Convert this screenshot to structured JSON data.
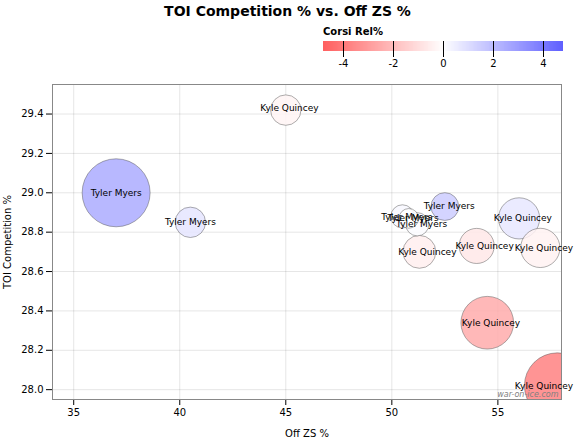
{
  "chart_data": {
    "type": "scatter",
    "title": "TOI Competition % vs. Off ZS %",
    "xlabel": "Off ZS %",
    "ylabel": "TOI Competition %",
    "x": [
      37.0,
      40.5,
      45.0,
      50.5,
      51.2,
      50.8,
      52.5,
      51.3,
      54.0,
      56.0,
      57.0,
      54.5,
      57.8
    ],
    "y": [
      29.0,
      28.85,
      29.42,
      28.88,
      28.84,
      28.87,
      28.93,
      28.7,
      28.73,
      28.87,
      28.72,
      28.34,
      28.02
    ],
    "sizes": [
      3000,
      600,
      600,
      350,
      350,
      250,
      500,
      700,
      800,
      1100,
      1000,
      1800,
      2800
    ],
    "color_values": [
      2.5,
      0.8,
      -0.3,
      0.2,
      0.1,
      0.0,
      1.5,
      -0.5,
      -0.7,
      0.7,
      -0.4,
      -2.5,
      -3.8
    ],
    "labels": [
      "Tyler Myers",
      "Tyler Myers",
      "Kyle Quincey",
      "Tyler Myers",
      "Tyler Myers",
      "Tyler Myers",
      "Tyler Myers",
      "Kyle Quincey",
      "Kyle Quincey",
      "Kyle Quincey",
      "Kyle Quincey",
      "Kyle Quincey",
      "Kyle Quincey"
    ],
    "label_x": [
      35.8,
      39.3,
      43.8,
      49.5,
      50.2,
      49.8,
      51.5,
      50.3,
      53.0,
      54.8,
      55.8,
      53.3,
      55.8
    ],
    "label_y": [
      29.0,
      28.85,
      29.43,
      28.875,
      28.84,
      28.87,
      28.93,
      28.7,
      28.73,
      28.87,
      28.72,
      28.34,
      28.02
    ],
    "xlim": [
      34,
      58
    ],
    "ylim": [
      27.95,
      29.55
    ],
    "xticks": [
      35,
      40,
      45,
      50,
      55
    ],
    "yticks": [
      {
        "value": 28.0,
        "label": "28.0"
      },
      28.2,
      28.4,
      28.6,
      28.8,
      {
        "value": 29.0,
        "label": "29.0"
      },
      29.2,
      29.4
    ],
    "grid": true,
    "colorbar_label": "Corsi Rel%",
    "colorbar_lim": [
      -4.8,
      4.8
    ],
    "colorbar_ticks": [
      4,
      2,
      0,
      -2,
      -4
    ],
    "colorbar_colors": [
      "#ff6060",
      "#ffffff",
      "#6060ff"
    ],
    "annotations": [
      "war-on-ice.com"
    ]
  }
}
